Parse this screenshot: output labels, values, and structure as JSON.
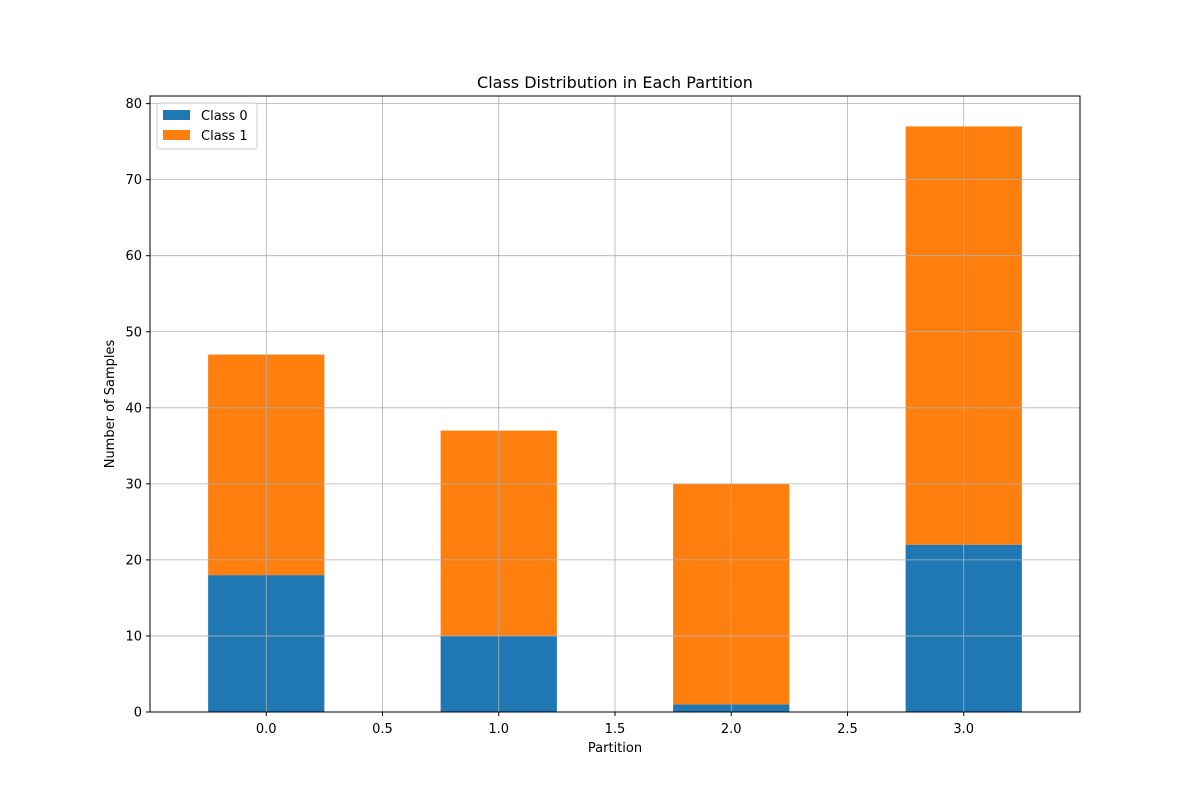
{
  "chart_data": {
    "type": "bar",
    "stacked": true,
    "title": "Class Distribution in Each Partition",
    "xlabel": "Partition",
    "ylabel": "Number of Samples",
    "x": [
      0,
      1,
      2,
      3
    ],
    "xlim": [
      -0.5,
      3.5
    ],
    "ylim": [
      0,
      81
    ],
    "xticks": [
      "0.0",
      "0.5",
      "1.0",
      "1.5",
      "2.0",
      "2.5",
      "3.0"
    ],
    "yticks": [
      "0",
      "10",
      "20",
      "30",
      "40",
      "50",
      "60",
      "70",
      "80"
    ],
    "bar_width": 0.5,
    "grid": true,
    "legend_position": "top-left",
    "series": [
      {
        "name": "Class 0",
        "color": "#1f77b4",
        "values": [
          18,
          10,
          1,
          22
        ]
      },
      {
        "name": "Class 1",
        "color": "#ff7f0e",
        "values": [
          29,
          27,
          29,
          55
        ]
      }
    ]
  }
}
